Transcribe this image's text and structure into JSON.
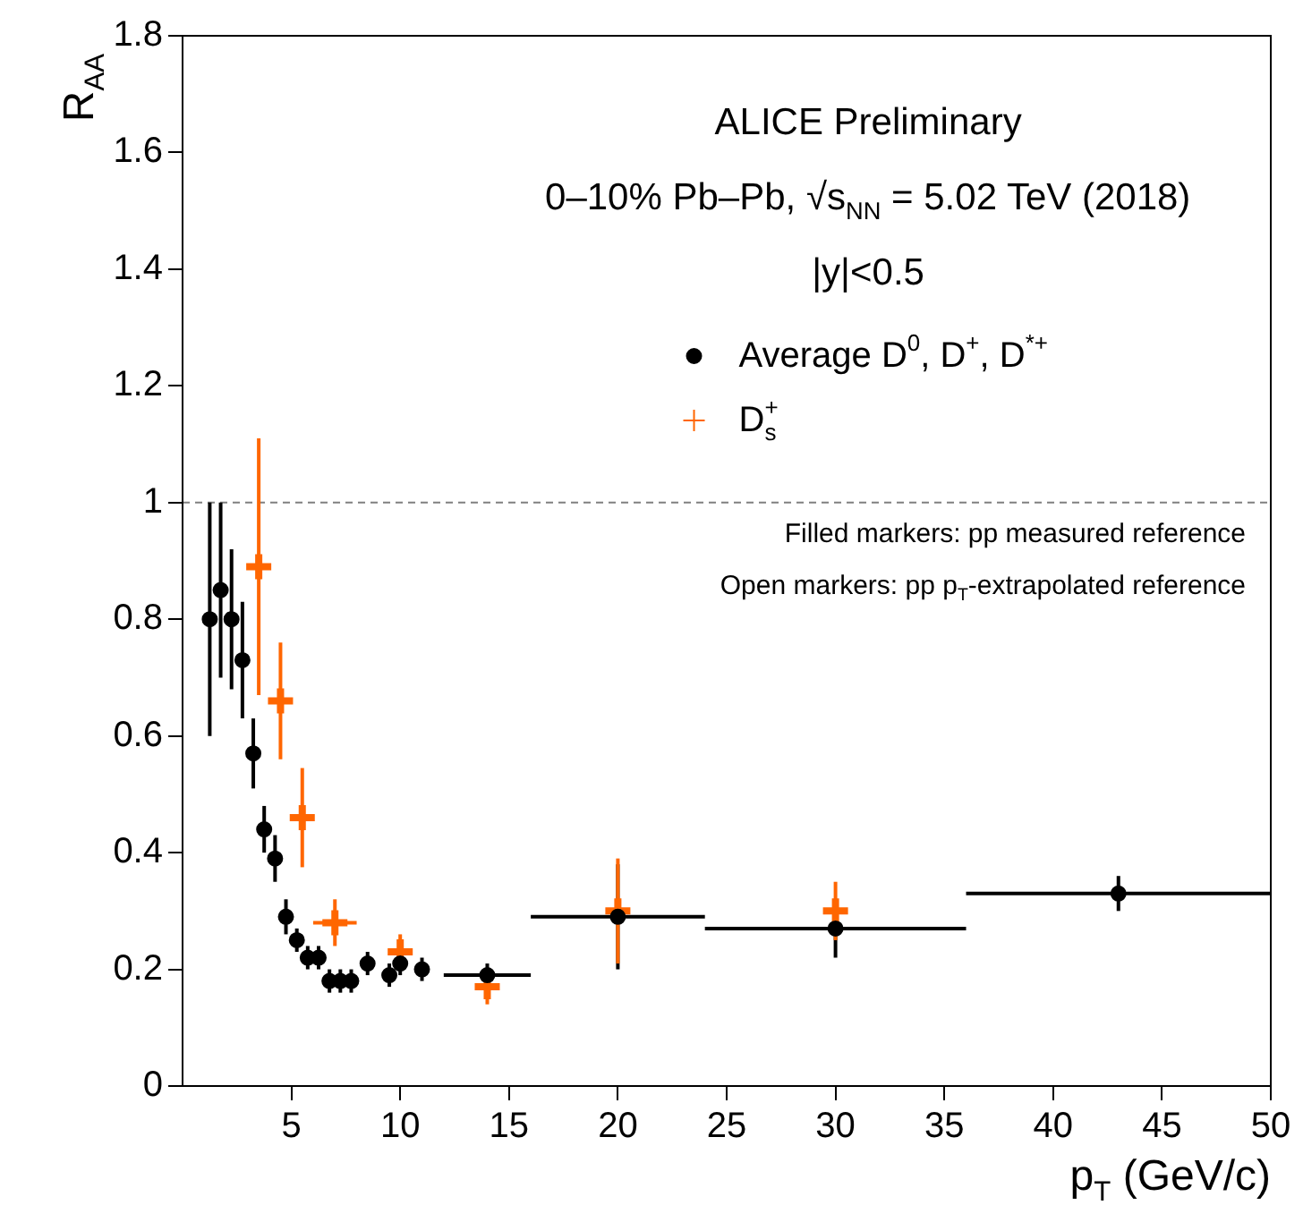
{
  "chart_data": {
    "type": "scatter",
    "xlabel": "p$_{T}$ (GeV/c)",
    "ylabel": "R$_{AA}$",
    "annotations": [
      "ALICE Preliminary",
      "0–10% Pb–Pb, √s$_{NN}$ = 5.02 TeV (2018)",
      "|y|<0.5",
      "Filled markers: pp measured reference",
      "Open markers: pp p$_{T}$-extrapolated reference"
    ],
    "xlim": [
      0,
      50
    ],
    "xticks": [
      5,
      10,
      15,
      20,
      25,
      30,
      35,
      40,
      45,
      50
    ],
    "ylim": [
      0,
      1.8
    ],
    "yticks": [
      0,
      0.2,
      0.4,
      0.6,
      0.8,
      1,
      1.2,
      1.4,
      1.6,
      1.8
    ],
    "grid": false,
    "legend": "top right",
    "ref_lines": [
      {
        "axis": "y",
        "value": 1,
        "color": "#808080",
        "line_style": "dashed"
      }
    ],
    "series": [
      {
        "name": "Average D$^{0}$, D$^{+}$, D$^{*+}$",
        "color": "#000000",
        "marker": "circle",
        "x": [
          1.25,
          1.75,
          2.25,
          2.75,
          3.25,
          3.75,
          4.25,
          4.75,
          5.25,
          5.75,
          6.25,
          6.75,
          7.25,
          7.75,
          8.5,
          9.5,
          10,
          11,
          14,
          20,
          30,
          43
        ],
        "values": [
          0.8,
          0.85,
          0.8,
          0.73,
          0.57,
          0.44,
          0.39,
          0.29,
          0.25,
          0.22,
          0.22,
          0.18,
          0.18,
          0.18,
          0.21,
          0.19,
          0.21,
          0.2,
          0.19,
          0.29,
          0.27,
          0.33
        ],
        "errors": [
          0.2,
          0.15,
          0.12,
          0.1,
          0.06,
          0.04,
          0.04,
          0.03,
          0.02,
          0.02,
          0.02,
          0.02,
          0.02,
          0.02,
          0.02,
          0.02,
          0.02,
          0.02,
          0.02,
          0.09,
          0.05,
          0.03
        ],
        "xerrors": [
          null,
          null,
          null,
          null,
          null,
          null,
          null,
          null,
          null,
          null,
          null,
          null,
          null,
          null,
          null,
          null,
          null,
          null,
          2,
          4,
          6,
          7
        ]
      },
      {
        "name": "D$_{s}$$^{+}$",
        "color": "#ff6600",
        "marker": "cross",
        "x": [
          3.5,
          4.5,
          5.5,
          7,
          10,
          14,
          20,
          30
        ],
        "values": [
          0.89,
          0.66,
          0.46,
          0.28,
          0.23,
          0.17,
          0.3,
          0.3
        ],
        "errors": [
          0.22,
          0.1,
          0.085,
          0.04,
          0.03,
          0.03,
          0.09,
          0.05
        ],
        "xerrors": [
          null,
          null,
          null,
          1,
          null,
          null,
          null,
          null
        ]
      }
    ]
  }
}
